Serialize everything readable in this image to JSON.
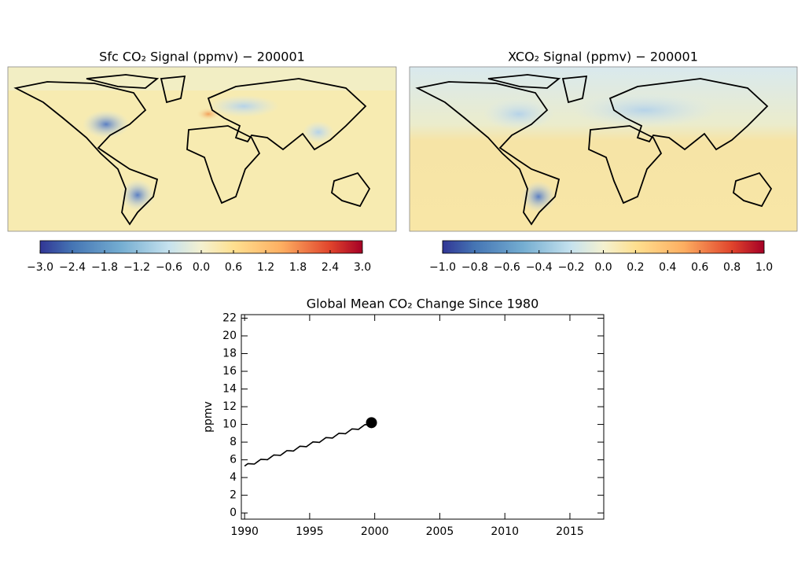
{
  "chart_data": [
    {
      "type": "map",
      "title": "Sfc CO₂ Signal (ppmv) − 200001",
      "colorbar_lim": [
        -3,
        3
      ],
      "colorbar_ticks": [
        {
          "value": -3,
          "label": "−3.0"
        },
        {
          "value": -2.4,
          "label": "−2.4"
        },
        {
          "value": -1.8,
          "label": "−1.8"
        },
        {
          "value": -1.2,
          "label": "−1.2"
        },
        {
          "value": -0.6,
          "label": "−0.6"
        },
        {
          "value": 0,
          "label": "0.0"
        },
        0.6,
        1.2,
        1.8,
        2.4,
        {
          "value": 3,
          "label": "3.0"
        }
      ]
    },
    {
      "type": "map",
      "title": "XCO₂ Signal (ppmv) − 200001",
      "colorbar_lim": [
        -1,
        1
      ],
      "colorbar_ticks": [
        {
          "value": -1,
          "label": "−1.0"
        },
        {
          "value": -0.8,
          "label": "−0.8"
        },
        {
          "value": -0.6,
          "label": "−0.6"
        },
        {
          "value": -0.4,
          "label": "−0.4"
        },
        {
          "value": -0.2,
          "label": "−0.2"
        },
        {
          "value": 0,
          "label": "0.0"
        },
        0.2,
        0.4,
        0.6,
        0.8,
        {
          "value": 1,
          "label": "1.0"
        }
      ]
    },
    {
      "type": "line",
      "title": "Global Mean CO₂ Change Since 1980",
      "y_label": "ppmv",
      "color": "#000000",
      "x": [
        1990,
        1990.25,
        1990.5,
        1990.75,
        1991,
        1991.25,
        1991.5,
        1991.75,
        1992,
        1992.25,
        1992.5,
        1992.75,
        1993,
        1993.25,
        1993.5,
        1993.75,
        1994,
        1994.25,
        1994.5,
        1994.75,
        1995,
        1995.25,
        1995.5,
        1995.75,
        1996,
        1996.25,
        1996.5,
        1996.75,
        1997,
        1997.25,
        1997.5,
        1997.75,
        1998,
        1998.25,
        1998.5,
        1998.75,
        1999,
        1999.25,
        1999.5,
        1999.75
      ],
      "values": [
        5.3,
        5.57,
        5.55,
        5.52,
        5.79,
        6.06,
        6.04,
        6.01,
        6.28,
        6.55,
        6.53,
        6.5,
        6.77,
        7.04,
        7.02,
        6.99,
        7.26,
        7.53,
        7.51,
        7.48,
        7.75,
        8.02,
        8.0,
        7.97,
        8.24,
        8.51,
        8.49,
        8.46,
        8.73,
        9.0,
        8.98,
        8.95,
        9.22,
        9.49,
        9.47,
        9.44,
        9.71,
        9.98,
        9.96,
        10.2
      ],
      "xlim": [
        1989.75,
        2017.6
      ],
      "ylim": [
        -0.7,
        22.4
      ],
      "xticks": [
        1990,
        1995,
        2000,
        2005,
        2010,
        2015
      ],
      "yticks": [
        0,
        2,
        4,
        6,
        8,
        10,
        12,
        14,
        16,
        18,
        20,
        22
      ]
    }
  ]
}
